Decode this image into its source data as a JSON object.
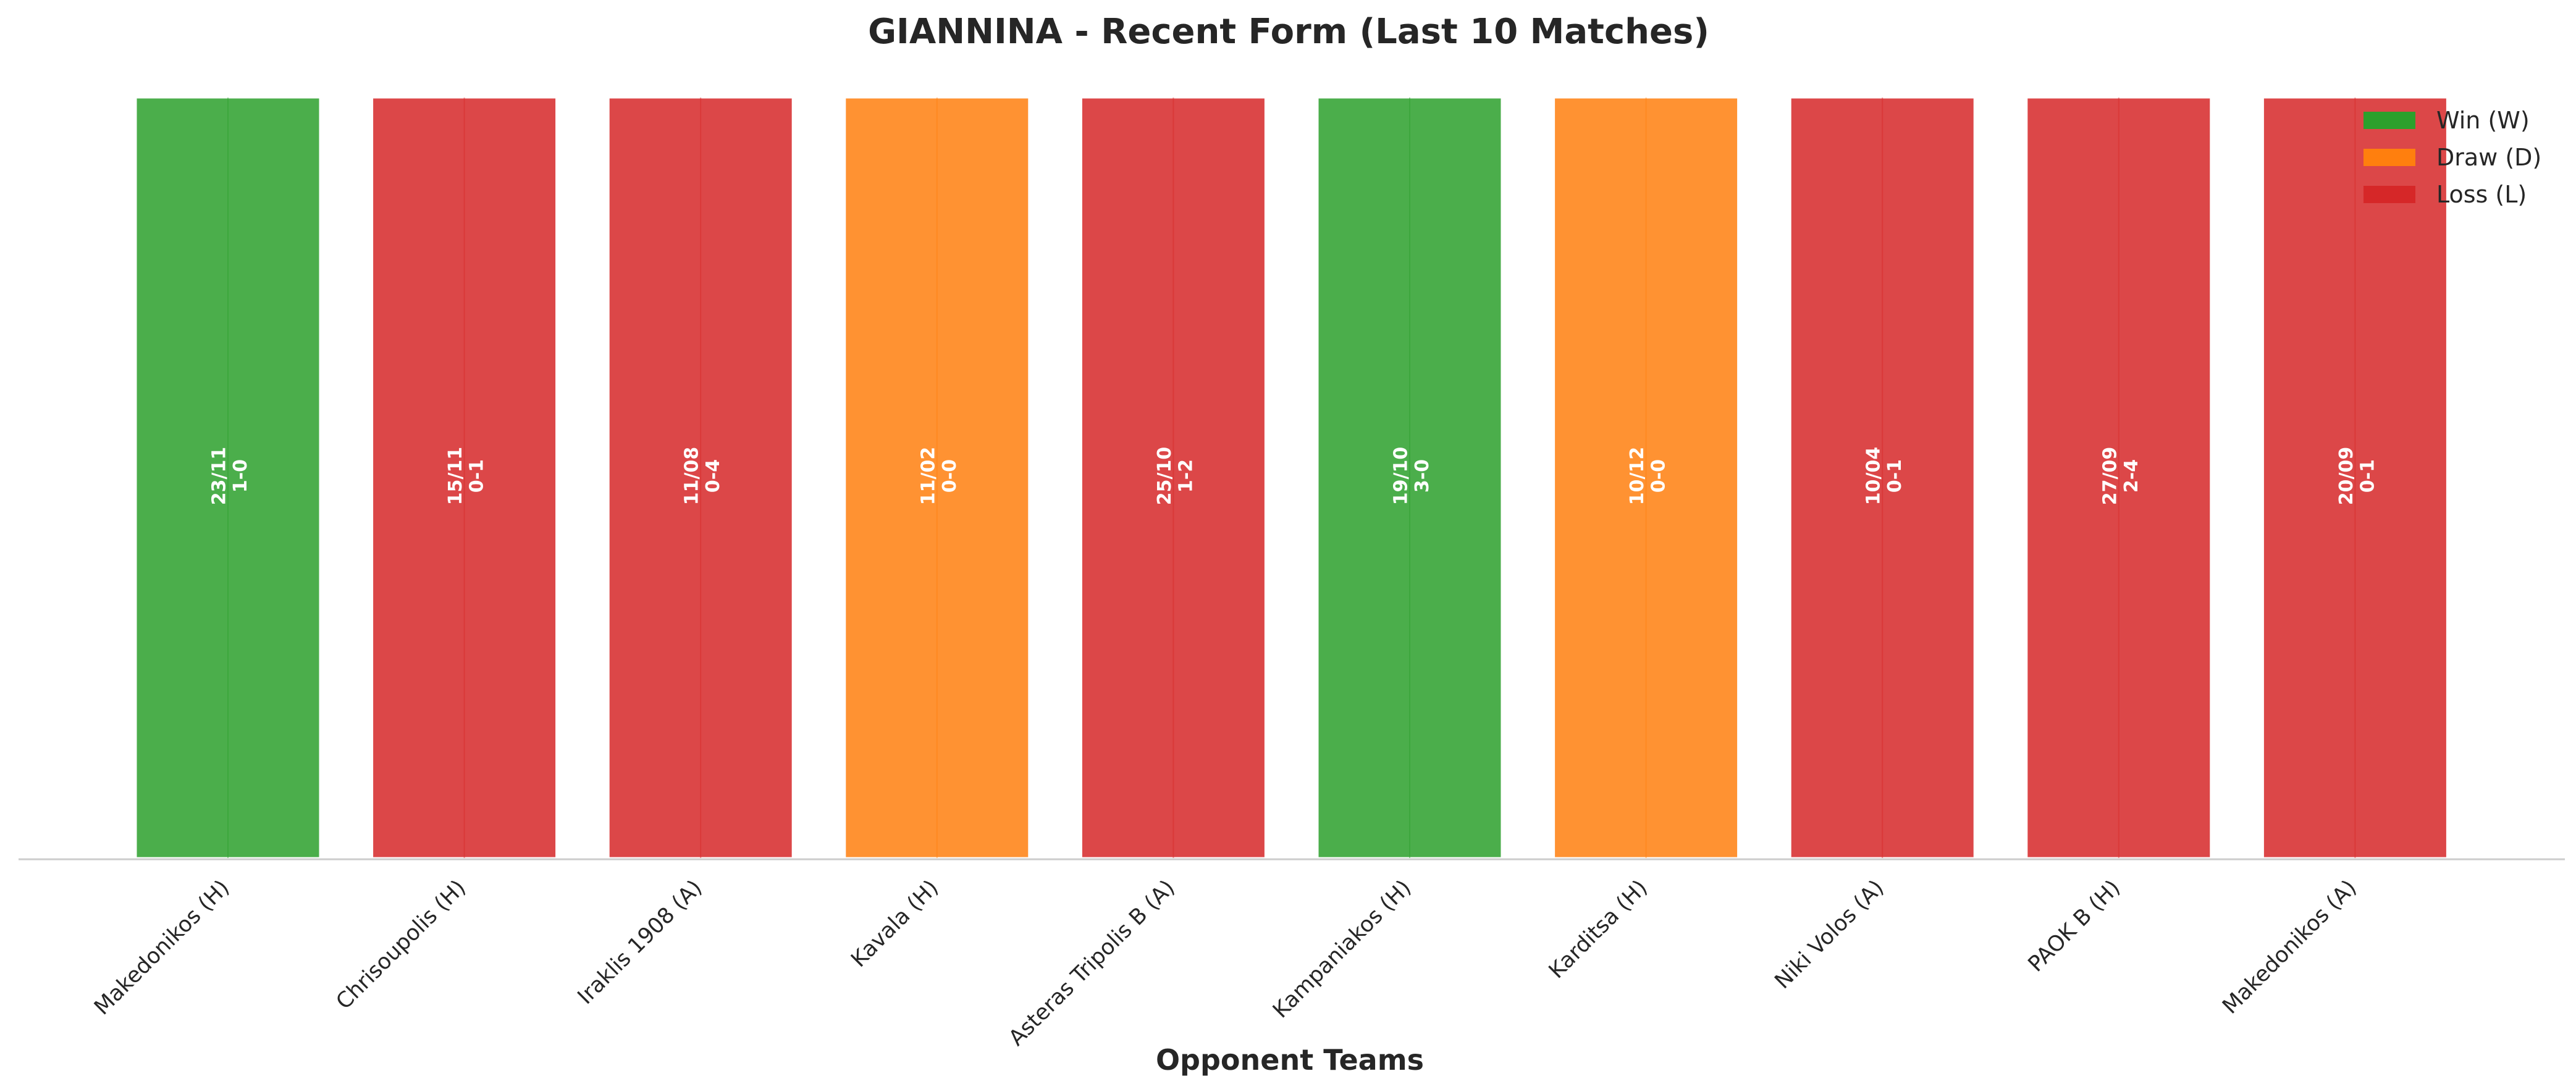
{
  "chart_data": {
    "type": "bar",
    "title": "GIANNINA - Recent Form (Last 10 Matches)",
    "xlabel": "Opponent Teams",
    "ylabel": "",
    "ylim": [
      0,
      1
    ],
    "grid": false,
    "legend_position": "top-right",
    "categories": [
      "Makedonikos (H)",
      "Chrisoupolis (H)",
      "Iraklis 1908 (A)",
      "Kavala (H)",
      "Asteras Tripolis B (A)",
      "Kampaniakos (H)",
      "Karditsa (H)",
      "Niki Volos (A)",
      "PAOK B (H)",
      "Makedonikos (A)"
    ],
    "values": [
      1,
      1,
      1,
      1,
      1,
      1,
      1,
      1,
      1,
      1
    ],
    "results": [
      "W",
      "L",
      "L",
      "D",
      "L",
      "W",
      "D",
      "L",
      "L",
      "L"
    ],
    "dates": [
      "23/11",
      "15/11",
      "11/08",
      "11/02",
      "25/10",
      "19/10",
      "10/12",
      "10/04",
      "27/09",
      "20/09"
    ],
    "scores": [
      "1-0",
      "0-1",
      "0-4",
      "0-0",
      "1-2",
      "3-0",
      "0-0",
      "0-1",
      "2-4",
      "0-1"
    ],
    "colors": {
      "W": "#2ca02c",
      "D": "#ff7f0e",
      "L": "#d62728"
    },
    "legend": [
      {
        "key": "W",
        "label": "Win (W)"
      },
      {
        "key": "D",
        "label": "Draw (D)"
      },
      {
        "key": "L",
        "label": "Loss (L)"
      }
    ]
  }
}
